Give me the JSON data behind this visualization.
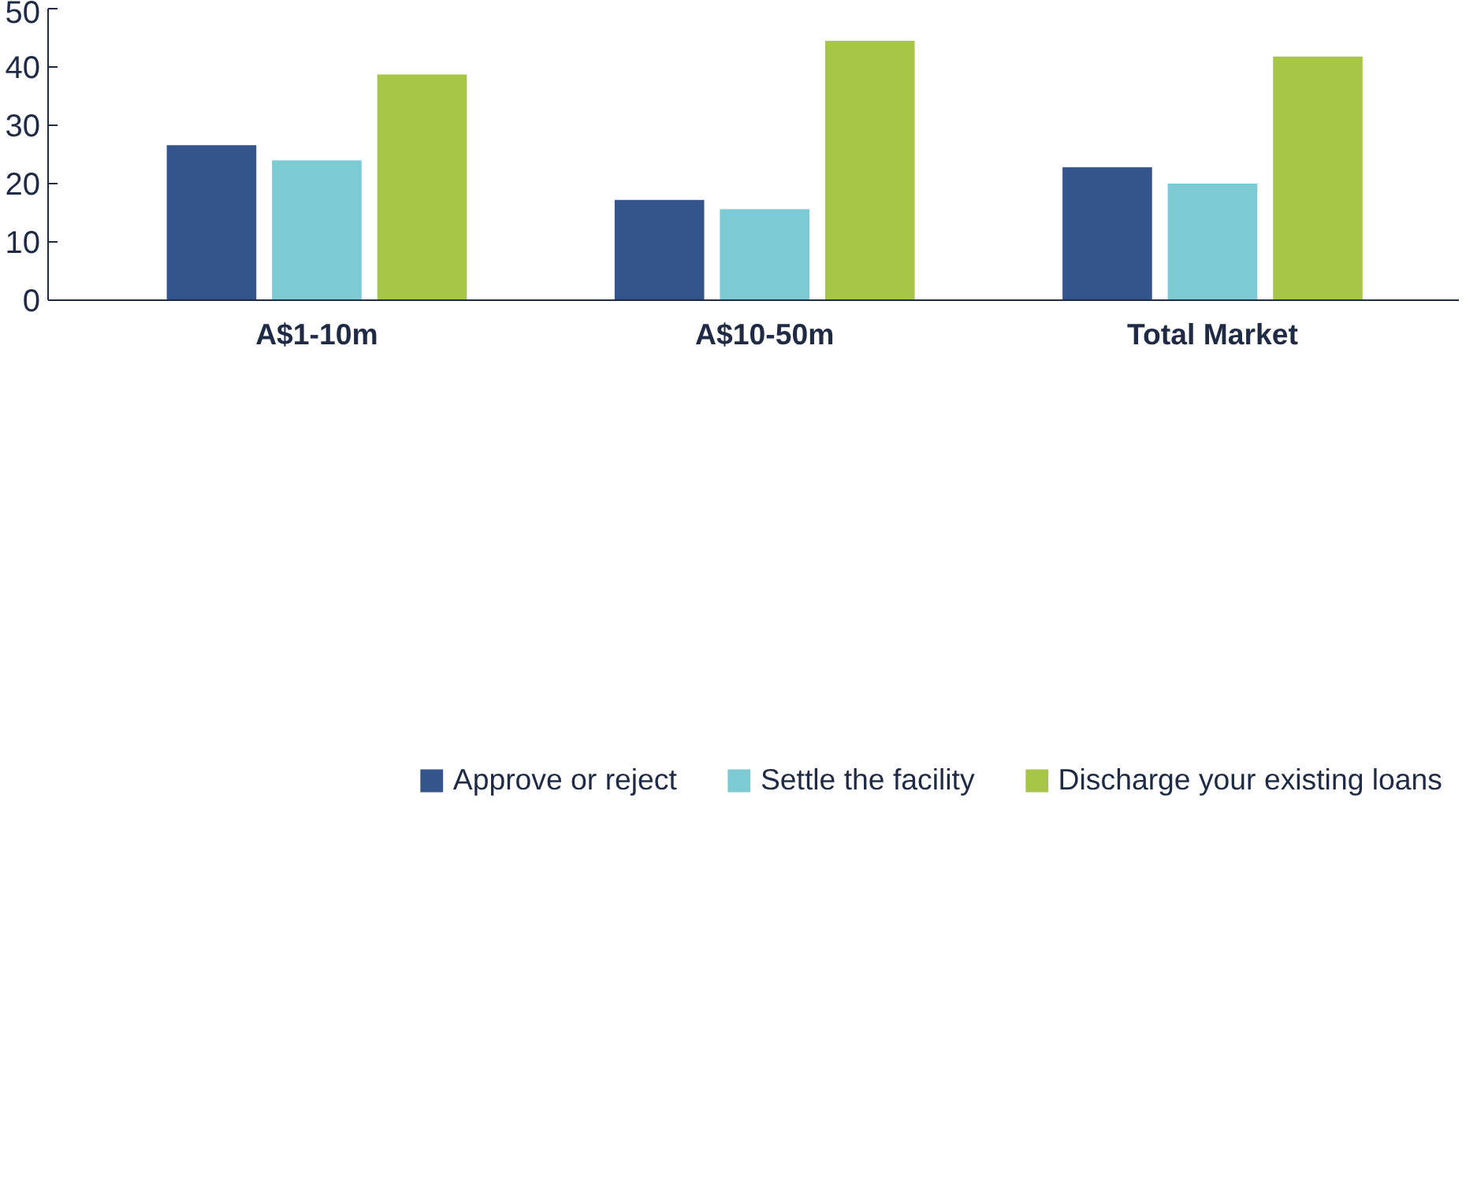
{
  "chart_data": {
    "type": "bar",
    "categories": [
      "A$1-10m",
      "A$10-50m",
      "Total Market"
    ],
    "series": [
      {
        "name": "Approve or reject",
        "color": "#34548c",
        "values": [
          26.6,
          17.2,
          22.8
        ]
      },
      {
        "name": "Settle the facility",
        "color": "#7ccad3",
        "values": [
          24.0,
          15.6,
          20.0
        ]
      },
      {
        "name": "Discharge your existing loans",
        "color": "#a5c646",
        "values": [
          38.7,
          44.5,
          41.8
        ]
      }
    ],
    "ylim": [
      0,
      50
    ],
    "yticks": [
      0,
      10,
      20,
      30,
      40,
      50
    ],
    "grid": false,
    "legend": "bottom"
  }
}
